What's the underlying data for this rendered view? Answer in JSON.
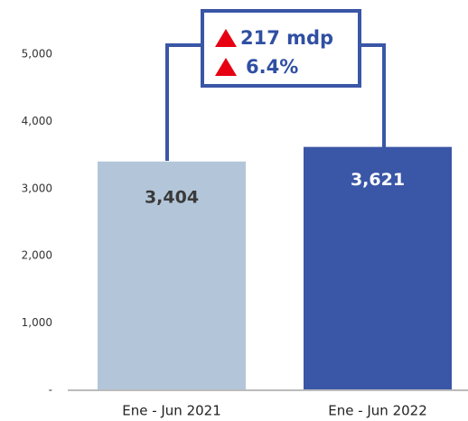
{
  "chart_data": {
    "type": "bar",
    "categories": [
      "Ene - Jun 2021",
      "Ene - Jun 2022"
    ],
    "values": [
      3404,
      3621
    ],
    "value_labels": [
      "3,404",
      "3,621"
    ],
    "colors": [
      "#b3c6d9",
      "#3a56a6"
    ],
    "ylim": [
      0,
      5800
    ],
    "yticks": [
      {
        "value": 0,
        "label": "-"
      },
      {
        "value": 1000,
        "label": "1,000"
      },
      {
        "value": 2000,
        "label": "2,000"
      },
      {
        "value": 3000,
        "label": "3,000"
      },
      {
        "value": 4000,
        "label": "4,000"
      },
      {
        "value": 5000,
        "label": "5,000"
      }
    ],
    "annotations": [
      "217 mdp",
      "6.4%"
    ]
  }
}
